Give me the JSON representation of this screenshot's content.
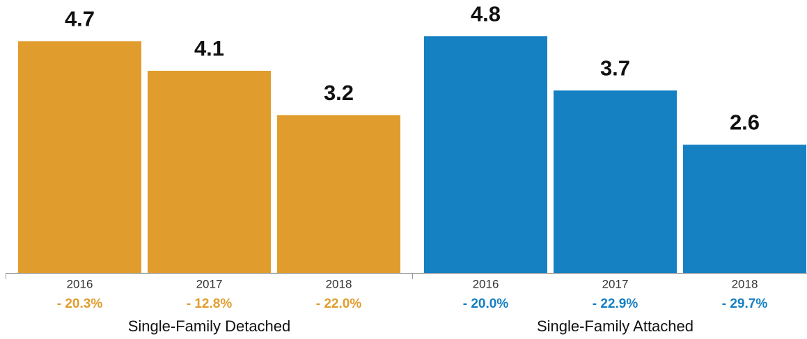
{
  "chart_data": [
    {
      "type": "bar",
      "x_label": "Single-Family Detached",
      "categories": [
        "2016",
        "2017",
        "2018"
      ],
      "values": [
        4.7,
        4.1,
        3.2
      ],
      "changes": [
        "- 20.3%",
        "- 12.8%",
        "- 22.0%"
      ],
      "color": "#e09d2e",
      "ylim": [
        0,
        5
      ]
    },
    {
      "type": "bar",
      "x_label": "Single-Family Attached",
      "categories": [
        "2016",
        "2017",
        "2018"
      ],
      "values": [
        4.8,
        3.7,
        2.6
      ],
      "changes": [
        "- 20.0%",
        "- 22.9%",
        "- 29.7%"
      ],
      "color": "#1580c2",
      "ylim": [
        0,
        5
      ]
    }
  ]
}
